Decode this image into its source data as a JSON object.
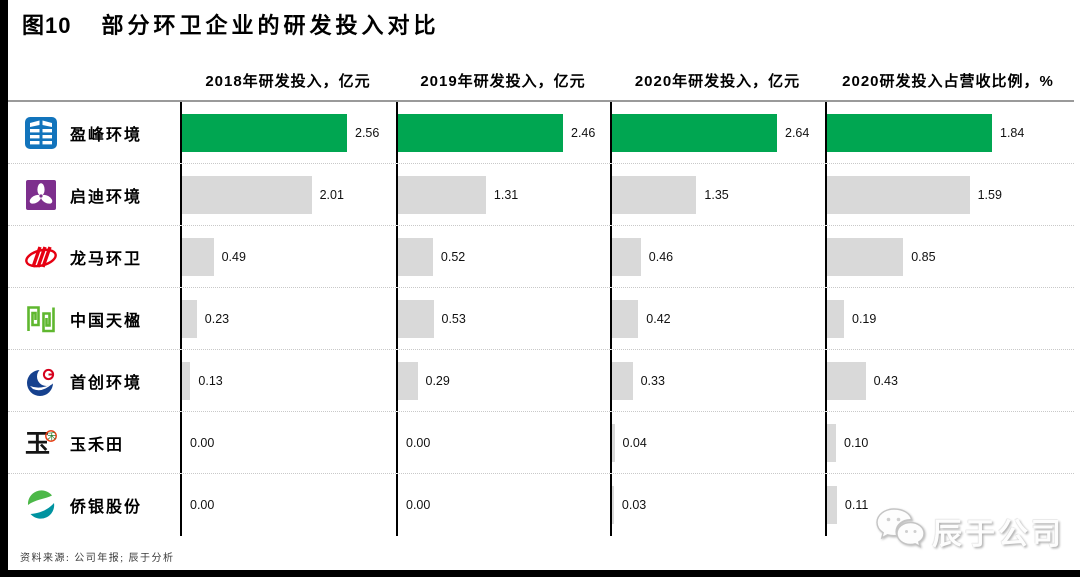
{
  "title_block": {
    "figure_label": "图10",
    "figure_title": "部分环卫企业的研发投入对比"
  },
  "source_note": "资料来源: 公司年报; 辰于分析",
  "watermark_text": "辰于公司",
  "colors": {
    "highlight_bar": "#00a651",
    "default_bar": "#d9d9d9",
    "axis": "#000000",
    "header_rule": "#9a9a9a"
  },
  "company_logos": [
    "yingfeng-environment-logo",
    "qidi-environment-logo",
    "longma-sanitation-logo",
    "china-tianying-logo",
    "capital-environment-logo",
    "yuhetian-logo",
    "qiaoyin-logo"
  ],
  "chart_data": {
    "type": "bar",
    "orientation": "horizontal",
    "figure_label": "图10",
    "title": "部分环卫企业的研发投入对比",
    "categories": [
      "盈峰环境",
      "启迪环境",
      "龙马环卫",
      "中国天楹",
      "首创环境",
      "玉禾田",
      "侨银股份"
    ],
    "series": [
      {
        "name": "2018年研发投入，亿元",
        "values": [
          2.56,
          2.01,
          0.49,
          0.23,
          0.13,
          0.0,
          0.0
        ]
      },
      {
        "name": "2019年研发投入，亿元",
        "values": [
          2.46,
          1.31,
          0.52,
          0.53,
          0.29,
          0.0,
          0.0
        ]
      },
      {
        "name": "2020年研发投入，亿元",
        "values": [
          2.64,
          1.35,
          0.46,
          0.42,
          0.33,
          0.04,
          0.03
        ]
      },
      {
        "name": "2020研发投入占营收比例，%",
        "values": [
          1.84,
          1.59,
          0.85,
          0.19,
          0.43,
          0.1,
          0.11
        ]
      }
    ],
    "highlight_category": "盈峰环境",
    "value_label_format": "0.00",
    "legend": false,
    "grid": false,
    "column_scaling": "each column scaled independently to its max value"
  }
}
